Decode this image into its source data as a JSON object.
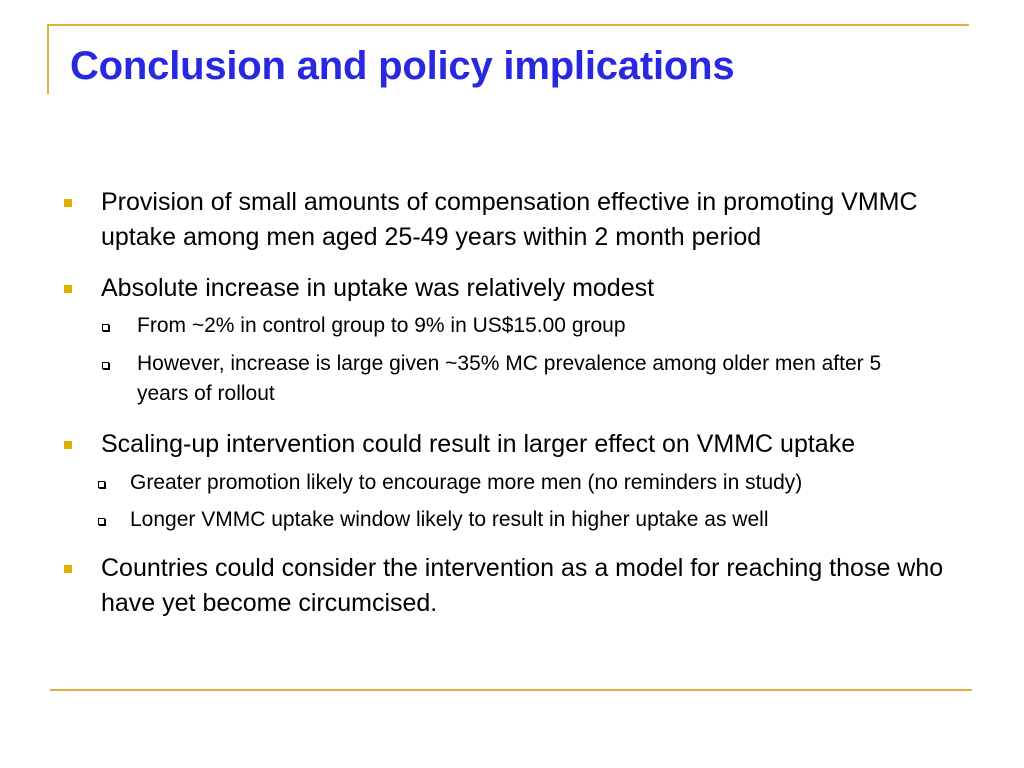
{
  "colors": {
    "title": "#2828e0",
    "accent_line": "#e0b040",
    "bullet": "#e0b000",
    "text": "#000000"
  },
  "slide": {
    "title": "Conclusion and policy implications",
    "bullets": [
      {
        "text": "Provision of small amounts of compensation effective in promoting VMMC uptake among men aged 25-49 years within 2 month period",
        "sub": []
      },
      {
        "text": "Absolute increase in uptake was relatively modest",
        "sub": [
          "From ~2% in control group to 9% in US$15.00 group",
          "However, increase is large  given ~35% MC prevalence among older men after 5 years of rollout"
        ]
      },
      {
        "text": "Scaling-up intervention could result in larger effect on VMMC uptake",
        "sub": [
          "Greater promotion likely to encourage more men (no reminders in study)",
          "Longer VMMC uptake window likely to result in higher uptake as well"
        ]
      },
      {
        "text": "Countries could consider the intervention as a model for reaching those who have yet become circumcised.",
        "sub": []
      }
    ]
  }
}
